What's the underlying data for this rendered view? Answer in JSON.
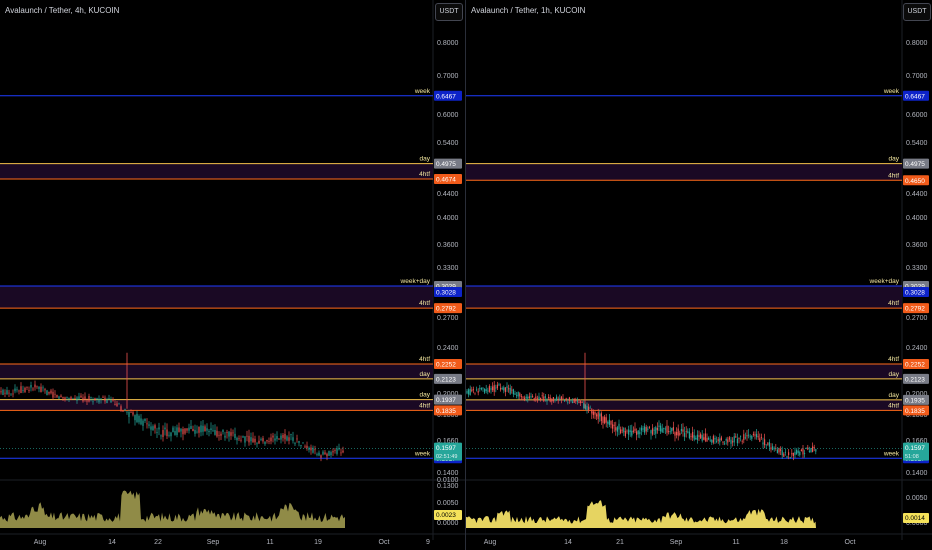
{
  "panels": [
    {
      "id": "left",
      "title": "Avalaunch / Tether, 4h, KUCOIN",
      "currency_button": "USDT",
      "price_ticks": [
        "0.8000",
        "0.7000",
        "0.6000",
        "0.5400",
        "0.4400",
        "0.4000",
        "0.3600",
        "0.3300",
        "0.2700",
        "0.2400",
        "0.2000",
        "0.1800",
        "0.1660",
        "0.1400",
        "0.1300"
      ],
      "volume_ticks": [
        "0.0100",
        "0.0050",
        "0.0000"
      ],
      "level_lines": [
        {
          "label": "week",
          "price": "0.6467",
          "color": "#1e3cff",
          "badge": "#0d23c9",
          "band": false
        },
        {
          "label": "day",
          "price": "0.4975",
          "color": "#f5c34b",
          "badge": "#787b86",
          "band": false
        },
        {
          "label": "4htf",
          "price": "0.4674",
          "color": "#ff6a1a",
          "badge": "#f15b1a",
          "band": true
        },
        {
          "label": "week+day",
          "price": "0.3029",
          "color": "#f5c34b",
          "badge": "#787b86",
          "band": false
        },
        {
          "label": "",
          "price": "0.3028",
          "color": "#1e3cff",
          "badge": "#0d23c9",
          "band": false
        },
        {
          "label": "4htf",
          "price": "0.2792",
          "color": "#ff6a1a",
          "badge": "#f15b1a",
          "band": true
        },
        {
          "label": "4htf",
          "price": "0.2252",
          "color": "#ff6a1a",
          "badge": "#f15b1a",
          "band": true
        },
        {
          "label": "day",
          "price": "0.2123",
          "color": "#f5c34b",
          "badge": "#787b86",
          "band": false
        },
        {
          "label": "day",
          "price": "0.1937",
          "color": "#f5c34b",
          "badge": "#787b86",
          "band": false
        },
        {
          "label": "4htf",
          "price": "0.1835",
          "color": "#ff6a1a",
          "badge": "#f15b1a",
          "band": true
        },
        {
          "label": "week",
          "price": "0.1527",
          "color": "#1e3cff",
          "badge": "#0d23c9",
          "band": false
        }
      ],
      "last_price": "0.1597",
      "last_countdown": "02:51:49",
      "volume_value": "0.0023",
      "x_ticks": [
        "Aug",
        "14",
        "22",
        "Sep",
        "11",
        "19",
        "Oct",
        "9"
      ]
    },
    {
      "id": "right",
      "title": "Avalaunch / Tether, 1h, KUCOIN",
      "currency_button": "USDT",
      "price_ticks": [
        "0.8000",
        "0.7000",
        "0.6000",
        "0.5400",
        "0.4400",
        "0.4000",
        "0.3600",
        "0.3300",
        "0.2700",
        "0.2400",
        "0.2000",
        "0.1800",
        "0.1660",
        "0.1400"
      ],
      "volume_ticks": [
        "0.0050",
        "0.0000"
      ],
      "level_lines": [
        {
          "label": "week",
          "price": "0.6467",
          "color": "#1e3cff",
          "badge": "#0d23c9",
          "band": false
        },
        {
          "label": "day",
          "price": "0.4975",
          "color": "#f5c34b",
          "badge": "#787b86",
          "band": false
        },
        {
          "label": "4htf",
          "price": "0.4650",
          "color": "#ff6a1a",
          "badge": "#f15b1a",
          "band": true
        },
        {
          "label": "week+day",
          "price": "0.3029",
          "color": "#f5c34b",
          "badge": "#787b86",
          "band": false
        },
        {
          "label": "",
          "price": "0.3028",
          "color": "#1e3cff",
          "badge": "#0d23c9",
          "band": false
        },
        {
          "label": "4htf",
          "price": "0.2792",
          "color": "#ff6a1a",
          "badge": "#f15b1a",
          "band": true
        },
        {
          "label": "4htf",
          "price": "0.2252",
          "color": "#ff6a1a",
          "badge": "#f15b1a",
          "band": true
        },
        {
          "label": "day",
          "price": "0.2123",
          "color": "#f5c34b",
          "badge": "#787b86",
          "band": false
        },
        {
          "label": "day",
          "price": "0.1935",
          "color": "#f5c34b",
          "badge": "#787b86",
          "band": false
        },
        {
          "label": "4htf",
          "price": "0.1835",
          "color": "#ff6a1a",
          "badge": "#f15b1a",
          "band": true
        },
        {
          "label": "week",
          "price": "0.1527",
          "color": "#1e3cff",
          "badge": "#0d23c9",
          "band": false
        }
      ],
      "last_price": "0.1597",
      "last_countdown": "51:08",
      "volume_value": "0.0014",
      "x_ticks": [
        "Aug",
        "14",
        "21",
        "Sep",
        "11",
        "18",
        "Oct"
      ]
    }
  ],
  "colors": {
    "background": "#000000",
    "up_candle": "#26a69a",
    "down_candle": "#ef5350",
    "volume_left": "#a09a4f",
    "volume_right": "#ffeb6b",
    "band_fill": "#1f0a2a"
  }
}
